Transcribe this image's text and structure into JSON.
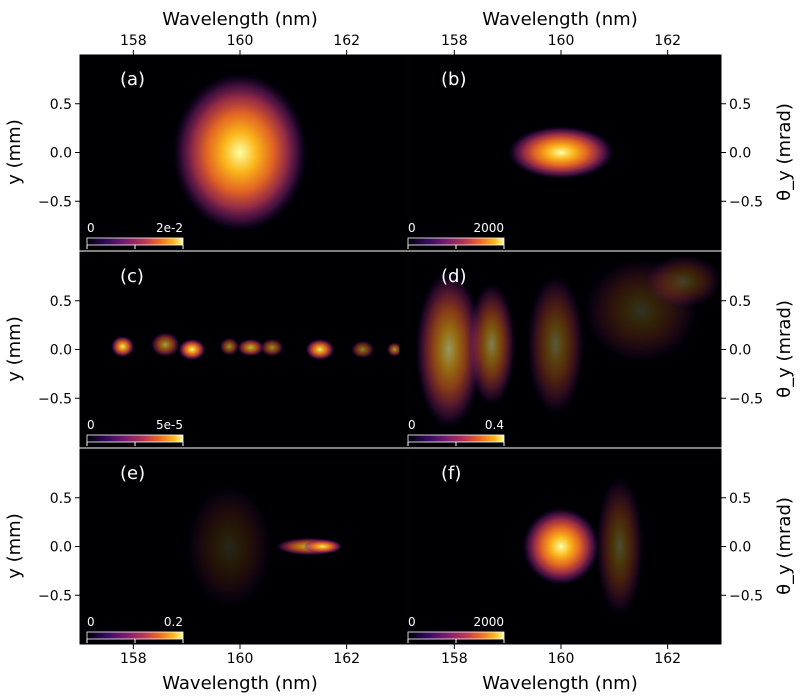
{
  "colors": {
    "background": "#000004",
    "panel_label": "#ffffff",
    "colormap": "inferno"
  },
  "chart_data": {
    "type": "heatmap",
    "layout": "3x2",
    "xlabel": "Wavelength (nm)",
    "ylabel_left": "y (mm)",
    "ylabel_right": "θ_y (mrad)",
    "xlim": [
      157,
      163
    ],
    "ylim": [
      -1.0,
      1.0
    ],
    "xticks": [
      "158",
      "160",
      "162"
    ],
    "yticks": [
      "0.5",
      "0.0",
      "−0.5"
    ],
    "xtick_values": [
      158,
      160,
      162
    ],
    "ytick_values": [
      0.5,
      0.0,
      -0.5
    ],
    "grid": false,
    "panels": [
      {
        "label": "(a)",
        "cbar_min": "0",
        "cbar_max": "2e-2",
        "blobs": [
          {
            "x": 160.0,
            "y": 0.0,
            "sx": 0.7,
            "sy": 0.45,
            "amp": 1.0
          }
        ]
      },
      {
        "label": "(b)",
        "cbar_min": "0",
        "cbar_max": "2000",
        "blobs": [
          {
            "x": 160.0,
            "y": 0.0,
            "sx": 0.55,
            "sy": 0.15,
            "amp": 1.0
          }
        ]
      },
      {
        "label": "(c)",
        "cbar_min": "0",
        "cbar_max": "5e-5",
        "blobs": [
          {
            "x": 157.8,
            "y": 0.03,
            "sx": 0.12,
            "sy": 0.06,
            "amp": 0.9
          },
          {
            "x": 158.6,
            "y": 0.05,
            "sx": 0.15,
            "sy": 0.07,
            "amp": 0.6
          },
          {
            "x": 159.1,
            "y": 0.0,
            "sx": 0.14,
            "sy": 0.06,
            "amp": 0.95
          },
          {
            "x": 159.8,
            "y": 0.03,
            "sx": 0.1,
            "sy": 0.05,
            "amp": 0.55
          },
          {
            "x": 160.2,
            "y": 0.02,
            "sx": 0.14,
            "sy": 0.05,
            "amp": 0.7
          },
          {
            "x": 160.6,
            "y": 0.02,
            "sx": 0.12,
            "sy": 0.05,
            "amp": 0.55
          },
          {
            "x": 161.5,
            "y": 0.0,
            "sx": 0.15,
            "sy": 0.06,
            "amp": 0.9
          },
          {
            "x": 162.3,
            "y": 0.0,
            "sx": 0.12,
            "sy": 0.05,
            "amp": 0.5
          },
          {
            "x": 162.9,
            "y": 0.0,
            "sx": 0.08,
            "sy": 0.04,
            "amp": 0.6
          }
        ]
      },
      {
        "label": "(d)",
        "cbar_min": "0",
        "cbar_max": "0.4",
        "blobs": [
          {
            "x": 157.9,
            "y": 0.0,
            "sx": 0.35,
            "sy": 0.45,
            "amp": 0.6
          },
          {
            "x": 158.7,
            "y": 0.05,
            "sx": 0.25,
            "sy": 0.35,
            "amp": 0.5
          },
          {
            "x": 159.9,
            "y": 0.05,
            "sx": 0.3,
            "sy": 0.4,
            "amp": 0.35
          },
          {
            "x": 161.5,
            "y": 0.4,
            "sx": 0.6,
            "sy": 0.3,
            "amp": 0.2
          },
          {
            "x": 162.3,
            "y": 0.7,
            "sx": 0.4,
            "sy": 0.15,
            "amp": 0.25
          }
        ]
      },
      {
        "label": "(e)",
        "cbar_min": "0",
        "cbar_max": "0.2",
        "blobs": [
          {
            "x": 159.8,
            "y": 0.0,
            "sx": 0.45,
            "sy": 0.35,
            "amp": 0.15
          },
          {
            "x": 161.3,
            "y": 0.0,
            "sx": 0.35,
            "sy": 0.05,
            "amp": 0.75
          },
          {
            "x": 161.55,
            "y": 0.0,
            "sx": 0.2,
            "sy": 0.04,
            "amp": 0.85
          }
        ]
      },
      {
        "label": "(f)",
        "cbar_min": "0",
        "cbar_max": "2000",
        "blobs": [
          {
            "x": 160.0,
            "y": 0.0,
            "sx": 0.4,
            "sy": 0.22,
            "amp": 1.0
          },
          {
            "x": 161.1,
            "y": 0.0,
            "sx": 0.25,
            "sy": 0.4,
            "amp": 0.3
          }
        ]
      }
    ]
  }
}
